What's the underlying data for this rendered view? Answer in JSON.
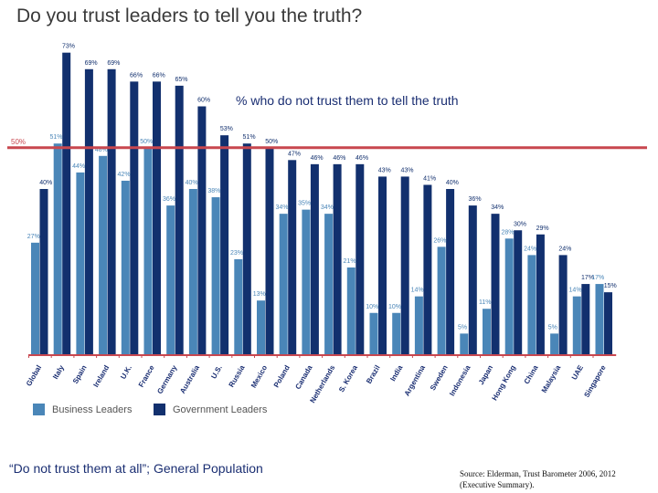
{
  "title": "Do you trust leaders to tell you the truth?",
  "annotation": "% who do not trust them to tell the truth",
  "reference_label": "50%",
  "footer_quote": "“Do not trust them at all”; General Population",
  "source_line1": "Source: Elderman, Trust Barometer 2006, 2012",
  "source_line2": "(Executive Summary).",
  "legend": [
    {
      "label": "Business Leaders",
      "color": "#4a86b8"
    },
    {
      "label": "Government Leaders",
      "color": "#12306e"
    }
  ],
  "colors": {
    "business": "#4a86b8",
    "government": "#12306e",
    "reference_line": "#c8474f",
    "axis": "#c8474f"
  },
  "chart_data": {
    "type": "bar",
    "title": "Do you trust leaders to tell you the truth?",
    "ylim": [
      0,
      80
    ],
    "reference_line": 50,
    "categories": [
      "Global",
      "Italy",
      "Spain",
      "Ireland",
      "U.K.",
      "France",
      "Germany",
      "Australia",
      "U.S.",
      "Russia",
      "Mexico",
      "Poland",
      "Canada",
      "Netherlands",
      "S. Korea",
      "Brazil",
      "India",
      "Argentina",
      "Sweden",
      "Indonesia",
      "Japan",
      "Hong Kong",
      "China",
      "Malaysia",
      "UAE",
      "Singapore"
    ],
    "series": [
      {
        "name": "Business Leaders",
        "values": [
          27,
          51,
          44,
          48,
          42,
          50,
          36,
          40,
          38,
          23,
          13,
          34,
          35,
          34,
          21,
          10,
          10,
          14,
          26,
          5,
          11,
          28,
          24,
          5,
          14,
          17
        ]
      },
      {
        "name": "Government Leaders",
        "values": [
          40,
          73,
          69,
          69,
          66,
          66,
          65,
          60,
          53,
          51,
          50,
          47,
          46,
          46,
          46,
          43,
          43,
          41,
          40,
          36,
          34,
          30,
          29,
          24,
          17,
          15
        ]
      }
    ]
  }
}
